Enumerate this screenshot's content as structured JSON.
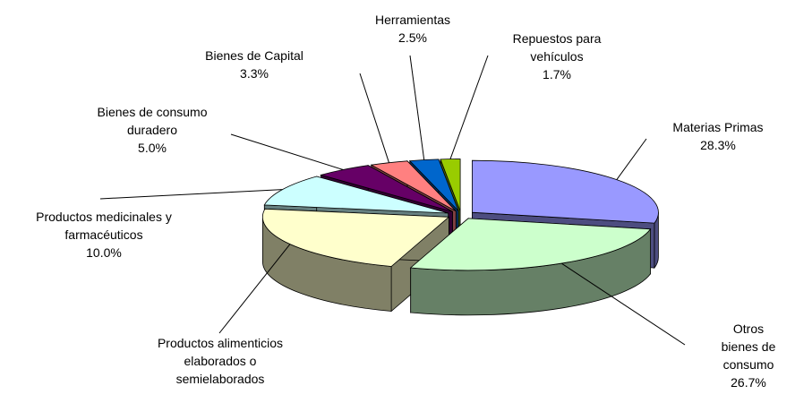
{
  "chart_data": {
    "type": "pie3d",
    "categories": [
      "Materias Primas",
      "Otros bienes de\nconsumo",
      "Productos alimenticios\nelaborados o\nsemielaborados",
      "Productos medicinales y\nfarmacéuticos",
      "Bienes de consumo\nduradero",
      "Bienes de Capital",
      "Herramientas",
      "Repuestos para\nvehículos"
    ],
    "values": [
      28.3,
      26.7,
      22.5,
      10.0,
      5.0,
      3.3,
      2.5,
      1.7
    ],
    "value_labels": [
      "28.3%",
      "26.7%",
      null,
      "10.0%",
      "5.0%",
      "3.3%",
      "2.5%",
      "1.7%"
    ],
    "colors": [
      "#9999ff",
      "#ccffcc",
      "#ffffcc",
      "#ccffff",
      "#660066",
      "#ff8080",
      "#0066cc",
      "#99cc00"
    ]
  }
}
